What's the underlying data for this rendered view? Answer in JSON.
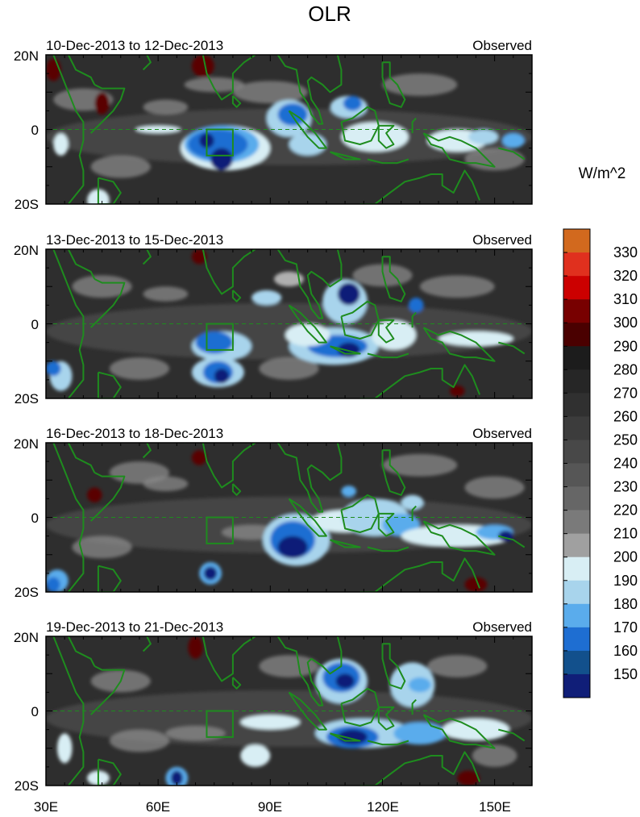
{
  "title": "OLR",
  "units": "W/m^2",
  "panels": [
    {
      "period": "10-Dec-2013 to 12-Dec-2013",
      "label": "Observed"
    },
    {
      "period": "13-Dec-2013 to 15-Dec-2013",
      "label": "Observed"
    },
    {
      "period": "16-Dec-2013 to 18-Dec-2013",
      "label": "Observed"
    },
    {
      "period": "19-Dec-2013 to 21-Dec-2013",
      "label": "Observed"
    }
  ],
  "lat_labels": [
    "20N",
    "0",
    "20S"
  ],
  "lon_labels": [
    "30E",
    "60E",
    "90E",
    "120E",
    "150E"
  ],
  "colorbar": {
    "levels": [
      "330",
      "320",
      "310",
      "300",
      "290",
      "280",
      "270",
      "260",
      "250",
      "240",
      "230",
      "220",
      "210",
      "200",
      "190",
      "180",
      "170",
      "160",
      "150"
    ],
    "colors": [
      "#d2691e",
      "#e0301e",
      "#cc0000",
      "#780000",
      "#4a0000",
      "#1c1c1c",
      "#262626",
      "#303030",
      "#3c3c3c",
      "#484848",
      "#565656",
      "#666666",
      "#7a7a7a",
      "#a0a0a0",
      "#d8eef4",
      "#a8d4ec",
      "#5aacec",
      "#1e6ed2",
      "#12508c",
      "#101e78"
    ]
  },
  "colors": {
    "coast": "#1e8c1e",
    "background_field": "#2e2e2e"
  }
}
